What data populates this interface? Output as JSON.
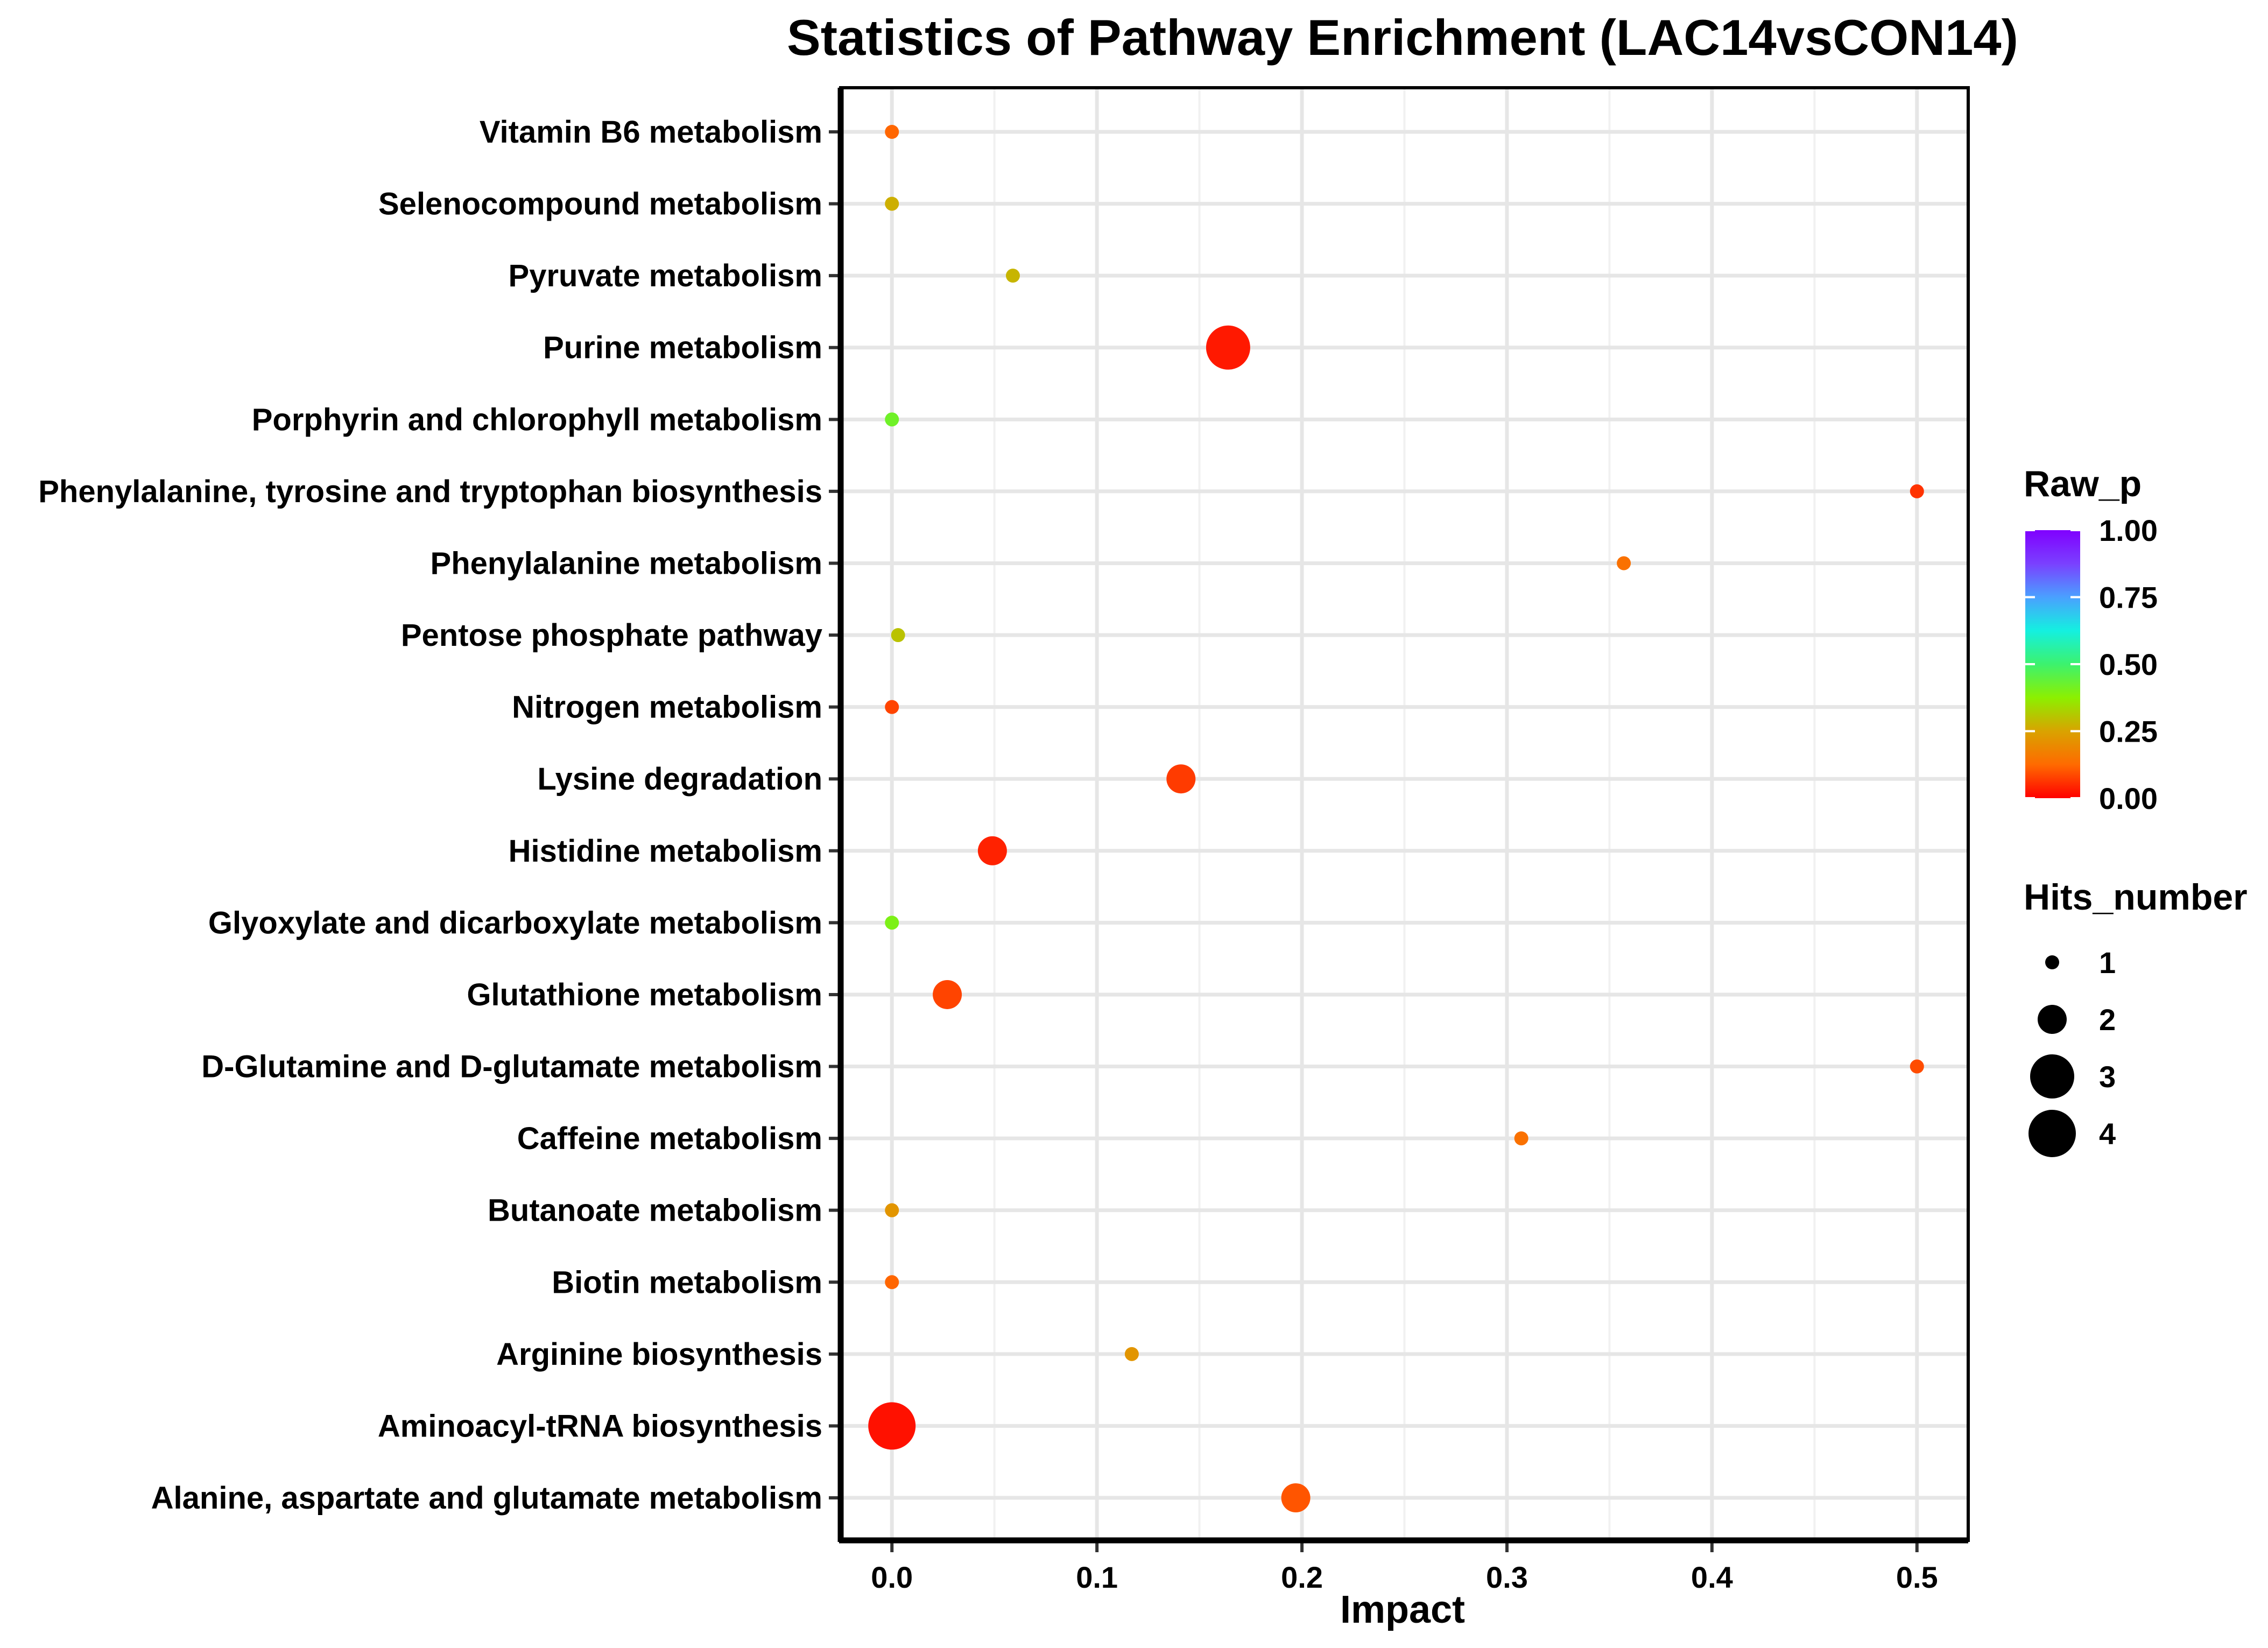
{
  "chart_data": {
    "type": "scatter",
    "title": "Statistics of Pathway Enrichment (LAC14vsCON14)",
    "xlabel": "Impact",
    "ylabel": "",
    "xlim": [
      -0.025,
      0.525
    ],
    "xticks": [
      0.0,
      0.1,
      0.2,
      0.3,
      0.4,
      0.5
    ],
    "xtick_labels": [
      "0.0",
      "0.1",
      "0.2",
      "0.3",
      "0.4",
      "0.5"
    ],
    "grid": true,
    "categories": [
      "Alanine, aspartate and glutamate metabolism",
      "Aminoacyl-tRNA biosynthesis",
      "Arginine biosynthesis",
      "Biotin metabolism",
      "Butanoate metabolism",
      "Caffeine metabolism",
      "D-Glutamine and D-glutamate metabolism",
      "Glutathione metabolism",
      "Glyoxylate and dicarboxylate metabolism",
      "Histidine metabolism",
      "Lysine degradation",
      "Nitrogen metabolism",
      "Pentose phosphate pathway",
      "Phenylalanine metabolism",
      "Phenylalanine, tyrosine and tryptophan biosynthesis",
      "Porphyrin and chlorophyll metabolism",
      "Purine metabolism",
      "Pyruvate metabolism",
      "Selenocompound metabolism",
      "Vitamin B6 metabolism"
    ],
    "points": [
      {
        "pathway": "Alanine, aspartate and glutamate metabolism",
        "impact": 0.197,
        "raw_p": 0.1,
        "hits": 2
      },
      {
        "pathway": "Aminoacyl-tRNA biosynthesis",
        "impact": 0.0,
        "raw_p": 0.02,
        "hits": 4
      },
      {
        "pathway": "Arginine biosynthesis",
        "impact": 0.117,
        "raw_p": 0.22,
        "hits": 1
      },
      {
        "pathway": "Biotin metabolism",
        "impact": 0.0,
        "raw_p": 0.12,
        "hits": 1
      },
      {
        "pathway": "Butanoate metabolism",
        "impact": 0.0,
        "raw_p": 0.22,
        "hits": 1
      },
      {
        "pathway": "Caffeine metabolism",
        "impact": 0.307,
        "raw_p": 0.14,
        "hits": 1
      },
      {
        "pathway": "D-Glutamine and D-glutamate metabolism",
        "impact": 0.5,
        "raw_p": 0.09,
        "hits": 1
      },
      {
        "pathway": "Glutathione metabolism",
        "impact": 0.027,
        "raw_p": 0.08,
        "hits": 2
      },
      {
        "pathway": "Glyoxylate and dicarboxylate metabolism",
        "impact": 0.0,
        "raw_p": 0.4,
        "hits": 1
      },
      {
        "pathway": "Histidine metabolism",
        "impact": 0.049,
        "raw_p": 0.04,
        "hits": 2
      },
      {
        "pathway": "Lysine degradation",
        "impact": 0.141,
        "raw_p": 0.07,
        "hits": 2
      },
      {
        "pathway": "Nitrogen metabolism",
        "impact": 0.0,
        "raw_p": 0.08,
        "hits": 1
      },
      {
        "pathway": "Pentose phosphate pathway",
        "impact": 0.003,
        "raw_p": 0.3,
        "hits": 1
      },
      {
        "pathway": "Phenylalanine metabolism",
        "impact": 0.357,
        "raw_p": 0.14,
        "hits": 1
      },
      {
        "pathway": "Phenylalanine, tyrosine and tryptophan biosynthesis",
        "impact": 0.5,
        "raw_p": 0.06,
        "hits": 1
      },
      {
        "pathway": "Porphyrin and chlorophyll metabolism",
        "impact": 0.0,
        "raw_p": 0.42,
        "hits": 1
      },
      {
        "pathway": "Purine metabolism",
        "impact": 0.164,
        "raw_p": 0.03,
        "hits": 3
      },
      {
        "pathway": "Pyruvate metabolism",
        "impact": 0.059,
        "raw_p": 0.28,
        "hits": 1
      },
      {
        "pathway": "Selenocompound metabolism",
        "impact": 0.0,
        "raw_p": 0.27,
        "hits": 1
      },
      {
        "pathway": "Vitamin B6 metabolism",
        "impact": 0.0,
        "raw_p": 0.12,
        "hits": 1
      }
    ],
    "color_legend": {
      "title": "Raw_p",
      "range": [
        0.0,
        1.0
      ],
      "ticks": [
        1.0,
        0.75,
        0.5,
        0.25,
        0.0
      ],
      "tick_labels": [
        "1.00",
        "0.75",
        "0.50",
        "0.25",
        "0.00"
      ],
      "gradient": [
        "#ff0000",
        "#ff6a00",
        "#d9a300",
        "#8cf000",
        "#3cf26e",
        "#14f0e0",
        "#4aa0ff",
        "#7a40ff",
        "#8000ff"
      ]
    },
    "size_legend": {
      "title": "Hits_number",
      "values": [
        1,
        2,
        3,
        4
      ],
      "labels": [
        "1",
        "2",
        "3",
        "4"
      ]
    }
  }
}
